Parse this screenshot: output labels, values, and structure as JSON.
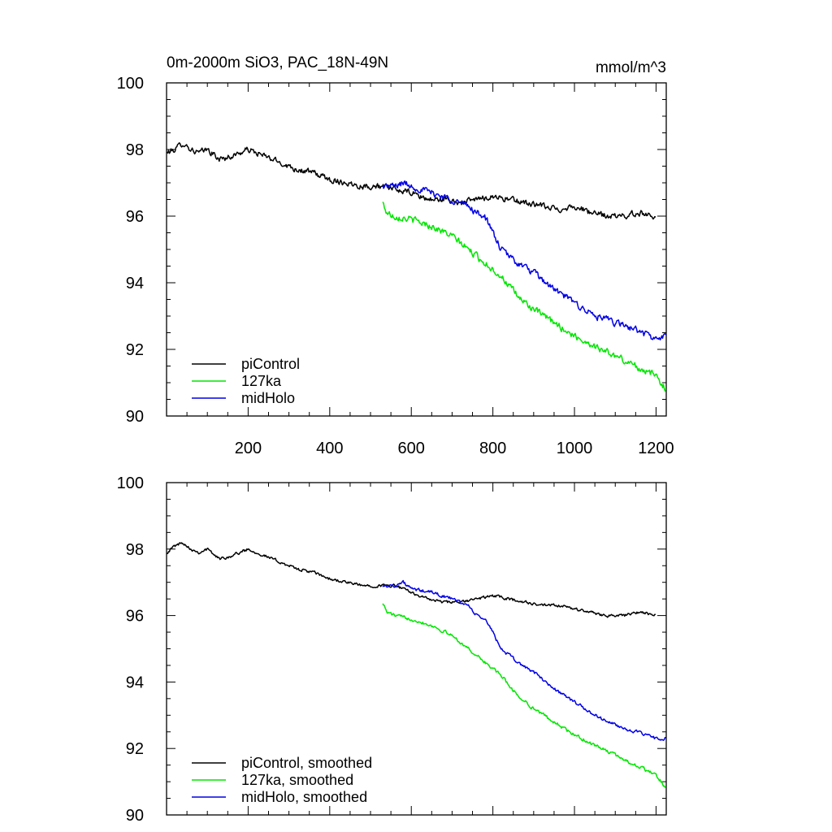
{
  "chart_data": [
    {
      "type": "line",
      "title": "0m-2000m SiO3, PAC_18N-49N",
      "units": "mmol/m^3",
      "xlabel": "",
      "ylabel": "",
      "xlim": [
        0,
        1225
      ],
      "ylim": [
        90,
        100
      ],
      "xticks": [
        200,
        400,
        600,
        800,
        1000,
        1200
      ],
      "yticks": [
        90,
        92,
        94,
        96,
        98,
        100
      ],
      "show_xtick_labels": true,
      "legend_position": "bottom-left",
      "series": [
        {
          "name": "piControl",
          "color": "#000000",
          "noise": 0.14,
          "x": [
            1,
            20,
            40,
            60,
            80,
            100,
            130,
            160,
            200,
            240,
            280,
            320,
            360,
            400,
            440,
            480,
            520,
            560,
            600,
            640,
            680,
            720,
            760,
            800,
            840,
            880,
            920,
            960,
            1000,
            1040,
            1080,
            1120,
            1160,
            1200
          ],
          "y": [
            97.9,
            98.0,
            98.2,
            98.0,
            97.9,
            98.0,
            97.7,
            97.8,
            98.0,
            97.8,
            97.6,
            97.4,
            97.3,
            97.1,
            97.0,
            96.9,
            96.9,
            96.8,
            96.7,
            96.5,
            96.5,
            96.4,
            96.5,
            96.6,
            96.5,
            96.4,
            96.3,
            96.2,
            96.3,
            96.1,
            96.0,
            96.0,
            96.1,
            96.0
          ]
        },
        {
          "name": "127ka",
          "color": "#00e600",
          "noise": 0.16,
          "x": [
            530,
            540,
            560,
            600,
            650,
            700,
            740,
            780,
            820,
            860,
            900,
            950,
            1000,
            1050,
            1100,
            1150,
            1200,
            1225
          ],
          "y": [
            96.4,
            96.1,
            96.0,
            95.9,
            95.7,
            95.4,
            95.0,
            94.6,
            94.2,
            93.6,
            93.2,
            92.8,
            92.4,
            92.1,
            91.8,
            91.5,
            91.2,
            90.8
          ]
        },
        {
          "name": "midHolo",
          "color": "#0000e6",
          "noise": 0.16,
          "x": [
            530,
            560,
            580,
            600,
            650,
            700,
            740,
            760,
            780,
            800,
            820,
            860,
            900,
            950,
            1000,
            1050,
            1100,
            1150,
            1200,
            1225
          ],
          "y": [
            96.9,
            96.9,
            97.0,
            96.9,
            96.7,
            96.5,
            96.3,
            96.1,
            96.0,
            95.5,
            95.0,
            94.6,
            94.3,
            93.8,
            93.4,
            93.0,
            92.8,
            92.6,
            92.3,
            92.4
          ]
        }
      ]
    },
    {
      "type": "line",
      "title": "",
      "units": "",
      "xlabel": "",
      "ylabel": "",
      "xlim": [
        0,
        1225
      ],
      "ylim": [
        90,
        100
      ],
      "xticks": [
        200,
        400,
        600,
        800,
        1000,
        1200
      ],
      "yticks": [
        90,
        92,
        94,
        96,
        98,
        100
      ],
      "show_xtick_labels": false,
      "legend_position": "bottom-left",
      "series": [
        {
          "name": "piControl, smoothed",
          "color": "#000000",
          "noise": 0.07,
          "x": [
            1,
            20,
            40,
            60,
            80,
            100,
            130,
            160,
            200,
            240,
            280,
            320,
            360,
            400,
            440,
            480,
            520,
            560,
            600,
            640,
            680,
            720,
            760,
            800,
            840,
            880,
            920,
            960,
            1000,
            1040,
            1080,
            1120,
            1160,
            1200
          ],
          "y": [
            97.9,
            98.1,
            98.2,
            98.0,
            97.9,
            98.0,
            97.7,
            97.8,
            98.0,
            97.8,
            97.6,
            97.4,
            97.3,
            97.1,
            97.0,
            96.9,
            96.9,
            96.9,
            96.7,
            96.5,
            96.4,
            96.4,
            96.5,
            96.6,
            96.5,
            96.4,
            96.3,
            96.3,
            96.2,
            96.1,
            96.0,
            96.0,
            96.1,
            96.0
          ]
        },
        {
          "name": "127ka, smoothed",
          "color": "#00e600",
          "noise": 0.08,
          "x": [
            530,
            540,
            560,
            600,
            650,
            700,
            740,
            780,
            820,
            860,
            900,
            950,
            1000,
            1050,
            1100,
            1150,
            1200,
            1225
          ],
          "y": [
            96.4,
            96.1,
            96.0,
            95.9,
            95.7,
            95.4,
            95.0,
            94.6,
            94.2,
            93.6,
            93.2,
            92.8,
            92.4,
            92.1,
            91.8,
            91.5,
            91.2,
            90.8
          ]
        },
        {
          "name": "midHolo, smoothed",
          "color": "#0000e6",
          "noise": 0.08,
          "x": [
            530,
            560,
            580,
            600,
            650,
            700,
            740,
            760,
            780,
            800,
            820,
            860,
            900,
            950,
            1000,
            1050,
            1100,
            1150,
            1200,
            1225
          ],
          "y": [
            96.9,
            96.9,
            97.0,
            96.8,
            96.7,
            96.5,
            96.3,
            96.0,
            95.9,
            95.5,
            95.0,
            94.6,
            94.3,
            93.8,
            93.4,
            93.0,
            92.7,
            92.5,
            92.3,
            92.3
          ]
        }
      ]
    }
  ]
}
